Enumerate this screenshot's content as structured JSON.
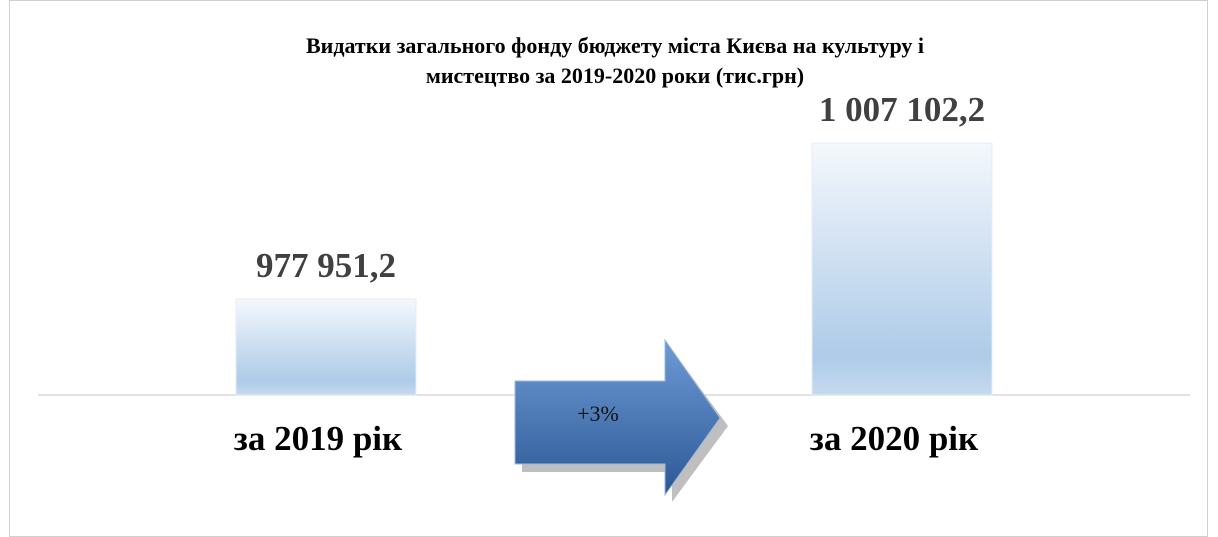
{
  "chart_data": {
    "type": "bar",
    "title": [
      "Видатки загального фонду бюджету міста Києва на культуру і",
      "мистецтво за 2019-2020 роки (тис.грн)"
    ],
    "categories": [
      "за 2019 рік",
      "за 2020 рік"
    ],
    "values": [
      977951.2,
      1007102.2
    ],
    "value_labels": [
      "977 951,2",
      "1 007 102,2"
    ],
    "color": "#b4cfea",
    "ylim": [
      960000,
      1015000
    ],
    "annotation": "+3%"
  }
}
